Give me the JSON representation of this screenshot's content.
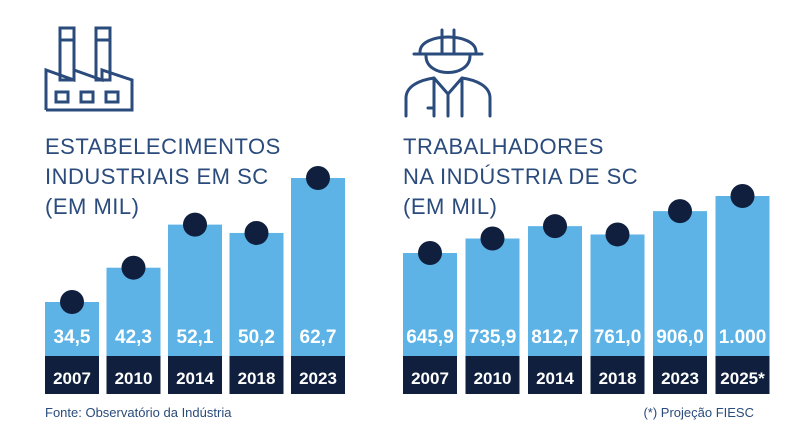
{
  "colors": {
    "bar": "#5db3e6",
    "year_band": "#0f1f3d",
    "dot": "#0f1f3d",
    "title": "#2a4b7c",
    "icon": "#2a4b7c"
  },
  "icons": {
    "left": "factory-icon",
    "right": "worker-hardhat-icon"
  },
  "chart_data": [
    {
      "type": "bar",
      "title": "ESTABELECIMENTOS\nINDUSTRIAIS EM SC\n(EM MIL)",
      "categories": [
        "2007",
        "2010",
        "2014",
        "2018",
        "2023"
      ],
      "value_labels": [
        "34,5",
        "42,3",
        "52,1",
        "50,2",
        "62,7"
      ],
      "values": [
        34.5,
        42.3,
        52.1,
        50.2,
        62.7
      ]
    },
    {
      "type": "bar",
      "title": "TRABALHADORES\nNA INDÚSTRIA DE SC\n(EM MIL)",
      "categories": [
        "2007",
        "2010",
        "2014",
        "2018",
        "2023",
        "2025*"
      ],
      "value_labels": [
        "645,9",
        "735,9",
        "812,7",
        "761,0",
        "906,0",
        "1.000"
      ],
      "values": [
        645.9,
        735.9,
        812.7,
        761.0,
        906.0,
        1000
      ]
    }
  ],
  "footnotes": {
    "source": "Fonte: Observatório da Indústria",
    "projection": "(*) Projeção FIESC"
  }
}
